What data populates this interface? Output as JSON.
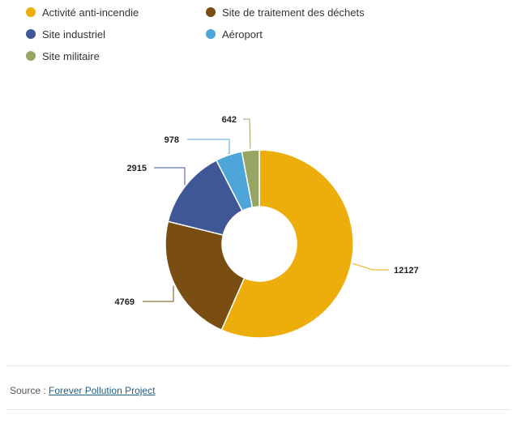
{
  "chart_data": {
    "type": "pie",
    "subtype": "donut",
    "categories": [
      "Activité anti-incendie",
      "Site de traitement des déchets",
      "Site industriel",
      "Aéroport",
      "Site militaire"
    ],
    "values": [
      12127,
      4769,
      2915,
      978,
      642
    ],
    "colors": [
      "#EDAE0C",
      "#7A4E12",
      "#3F5796",
      "#4EA5D9",
      "#96A563"
    ],
    "legend_position": "top"
  },
  "source": {
    "prefix": "Source :",
    "link_text": "Forever Pollution Project"
  }
}
